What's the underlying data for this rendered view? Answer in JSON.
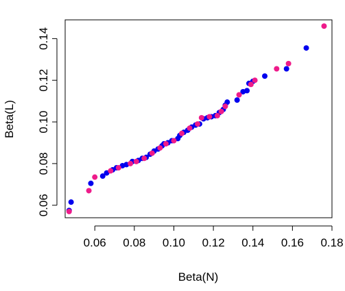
{
  "chart_data": {
    "type": "scatter",
    "title": "",
    "xlabel": "Beta(N)",
    "ylabel": "Beta(L)",
    "xlim": [
      0.045,
      0.18
    ],
    "ylim": [
      0.054,
      0.149
    ],
    "x_ticks": [
      0.06,
      0.08,
      0.1,
      0.12,
      0.14,
      0.16,
      0.18
    ],
    "x_tick_labels": [
      "0.06",
      "0.08",
      "0.10",
      "0.12",
      "0.14",
      "0.16",
      "0.18"
    ],
    "y_ticks": [
      0.06,
      0.08,
      0.1,
      0.12,
      0.14
    ],
    "y_tick_labels": [
      "0.06",
      "0.08",
      "0.10",
      "0.12",
      "0.14"
    ],
    "grid": false,
    "legend": "none",
    "series": [
      {
        "color": "#0000ee",
        "points": [
          [
            0.047,
            0.0575
          ],
          [
            0.048,
            0.0615
          ],
          [
            0.058,
            0.0705
          ],
          [
            0.064,
            0.074
          ],
          [
            0.066,
            0.0755
          ],
          [
            0.069,
            0.077
          ],
          [
            0.071,
            0.078
          ],
          [
            0.074,
            0.079
          ],
          [
            0.076,
            0.0795
          ],
          [
            0.079,
            0.081
          ],
          [
            0.082,
            0.0815
          ],
          [
            0.084,
            0.0825
          ],
          [
            0.086,
            0.083
          ],
          [
            0.088,
            0.0845
          ],
          [
            0.09,
            0.086
          ],
          [
            0.092,
            0.087
          ],
          [
            0.094,
            0.0885
          ],
          [
            0.095,
            0.0895
          ],
          [
            0.097,
            0.09
          ],
          [
            0.099,
            0.091
          ],
          [
            0.102,
            0.092
          ],
          [
            0.103,
            0.0935
          ],
          [
            0.105,
            0.095
          ],
          [
            0.107,
            0.096
          ],
          [
            0.109,
            0.0975
          ],
          [
            0.111,
            0.0985
          ],
          [
            0.113,
            0.099
          ],
          [
            0.115,
            0.1015
          ],
          [
            0.117,
            0.102
          ],
          [
            0.119,
            0.1025
          ],
          [
            0.121,
            0.103
          ],
          [
            0.123,
            0.1045
          ],
          [
            0.125,
            0.106
          ],
          [
            0.126,
            0.108
          ],
          [
            0.127,
            0.1095
          ],
          [
            0.132,
            0.1105
          ],
          [
            0.135,
            0.1145
          ],
          [
            0.137,
            0.115
          ],
          [
            0.138,
            0.1185
          ],
          [
            0.14,
            0.1195
          ],
          [
            0.146,
            0.122
          ],
          [
            0.157,
            0.1255
          ],
          [
            0.167,
            0.1355
          ]
        ]
      },
      {
        "color": "#ee1b8a",
        "points": [
          [
            0.047,
            0.057
          ],
          [
            0.057,
            0.067
          ],
          [
            0.06,
            0.0735
          ],
          [
            0.068,
            0.0765
          ],
          [
            0.072,
            0.078
          ],
          [
            0.078,
            0.08
          ],
          [
            0.081,
            0.081
          ],
          [
            0.085,
            0.0825
          ],
          [
            0.089,
            0.085
          ],
          [
            0.093,
            0.0875
          ],
          [
            0.096,
            0.0895
          ],
          [
            0.1,
            0.091
          ],
          [
            0.104,
            0.0945
          ],
          [
            0.108,
            0.097
          ],
          [
            0.112,
            0.099
          ],
          [
            0.114,
            0.102
          ],
          [
            0.118,
            0.1025
          ],
          [
            0.122,
            0.103
          ],
          [
            0.124,
            0.105
          ],
          [
            0.126,
            0.1075
          ],
          [
            0.133,
            0.113
          ],
          [
            0.139,
            0.118
          ],
          [
            0.141,
            0.12
          ],
          [
            0.152,
            0.1255
          ],
          [
            0.158,
            0.128
          ],
          [
            0.176,
            0.146
          ]
        ]
      }
    ]
  }
}
